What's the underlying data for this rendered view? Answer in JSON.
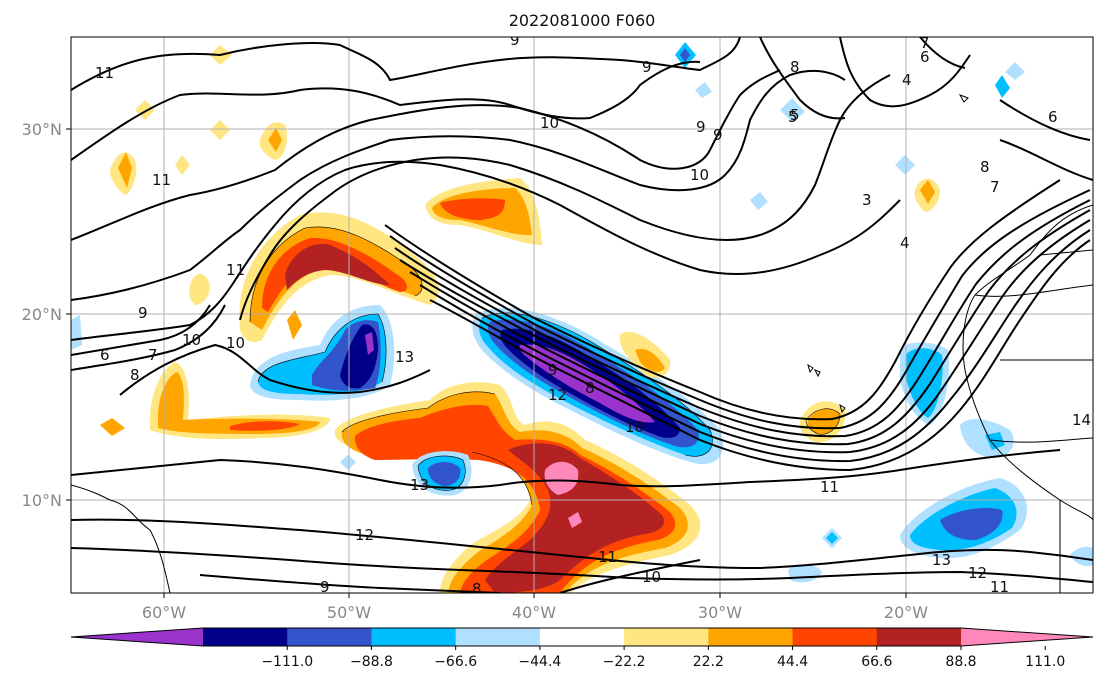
{
  "title": "2022081000 F060",
  "map": {
    "lon_range": [
      -65,
      10
    ],
    "lat_range": [
      5,
      35
    ],
    "lon_ticks": [
      "60°W",
      "50°W",
      "40°W",
      "30°W",
      "20°W"
    ],
    "lat_ticks": [
      "30°N",
      "20°N",
      "10°N"
    ],
    "grid": true
  },
  "colorbar": {
    "ticks": [
      "−111.0",
      "−88.8",
      "−66.6",
      "−44.4",
      "−22.2",
      "22.2",
      "44.4",
      "66.6",
      "88.8",
      "111.0"
    ],
    "colors": [
      "#9933cc",
      "#00008b",
      "#3355cc",
      "#00bfff",
      "#b0e0ff",
      "#ffffff",
      "#ffe680",
      "#ffa500",
      "#ff4500",
      "#b22222",
      "#ff88bb"
    ],
    "extend": "both"
  },
  "contour_labels": [
    "11",
    "9",
    "9",
    "8",
    "7",
    "6",
    "5",
    "4",
    "10",
    "9",
    "9",
    "10",
    "3",
    "4",
    "8",
    "6",
    "7",
    "11",
    "11",
    "9",
    "10",
    "10",
    "6",
    "7",
    "8",
    "13",
    "9",
    "8",
    "12",
    "10",
    "13",
    "11",
    "12",
    "11",
    "10",
    "9",
    "8",
    "13",
    "12",
    "11",
    "14",
    "5"
  ]
}
